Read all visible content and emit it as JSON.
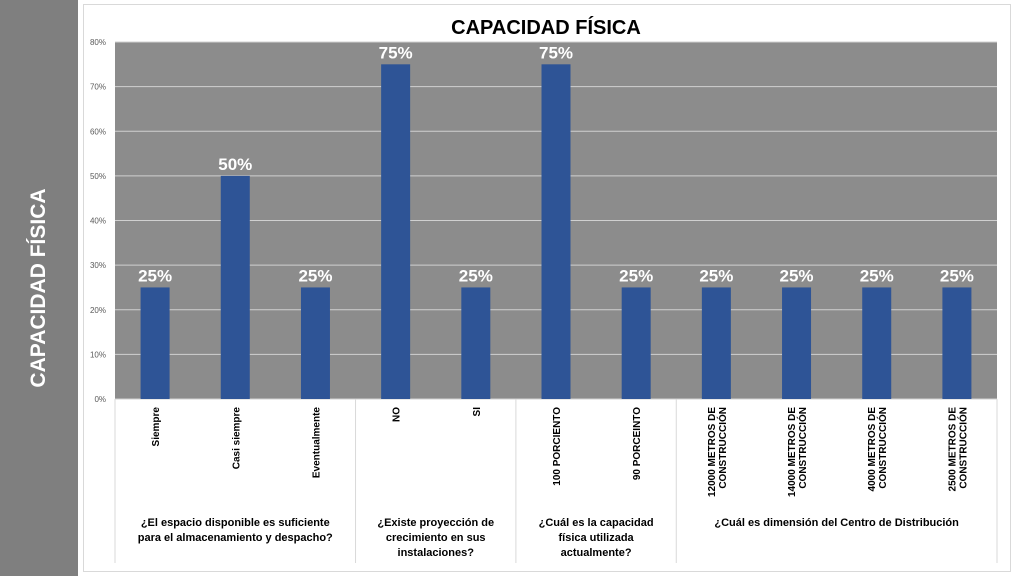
{
  "sidebar": {
    "title": "CAPACIDAD FÍSICA"
  },
  "colors": {
    "bar": "#2e5496",
    "plot_bg": "#8c8c8c",
    "sidebar_bg": "#7f7f7f",
    "label": "#ffffff"
  },
  "chart_data": {
    "type": "bar",
    "title": "CAPACIDAD FÍSICA",
    "xlabel": "",
    "ylabel": "",
    "ylim": [
      0,
      0.8
    ],
    "yticks": [
      "0%",
      "10%",
      "20%",
      "30%",
      "40%",
      "50%",
      "60%",
      "70%",
      "80%"
    ],
    "grid": true,
    "categories": [
      "Siempre",
      "Casi siempre",
      "Eventualmente",
      "NO",
      "SI",
      "100 PORCIENTO",
      "90 PORCEINTO",
      "12000 METROS DE CONSTRUCCIÓN",
      "14000 METROS DE CONSTRUCCIÓN",
      "4000 METROS DE CONSTRUCCIÓN",
      "2500 METROS DE CONSTRUCCIÓN"
    ],
    "values": [
      0.25,
      0.5,
      0.25,
      0.75,
      0.25,
      0.75,
      0.25,
      0.25,
      0.25,
      0.25,
      0.25
    ],
    "data_labels": [
      "25%",
      "50%",
      "25%",
      "75%",
      "25%",
      "75%",
      "25%",
      "25%",
      "25%",
      "25%",
      "25%"
    ],
    "groups": [
      {
        "label": "¿El espacio disponible es suficiente para el almacenamiento y despacho?",
        "start": 0,
        "count": 3
      },
      {
        "label": "¿Existe proyección de crecimiento en sus instalaciones?",
        "start": 3,
        "count": 2
      },
      {
        "label": "¿Cuál es la capacidad física utilizada actualmente?",
        "start": 5,
        "count": 2
      },
      {
        "label": "¿Cuál es dimensión del Centro de Distribución",
        "start": 7,
        "count": 4
      }
    ]
  }
}
